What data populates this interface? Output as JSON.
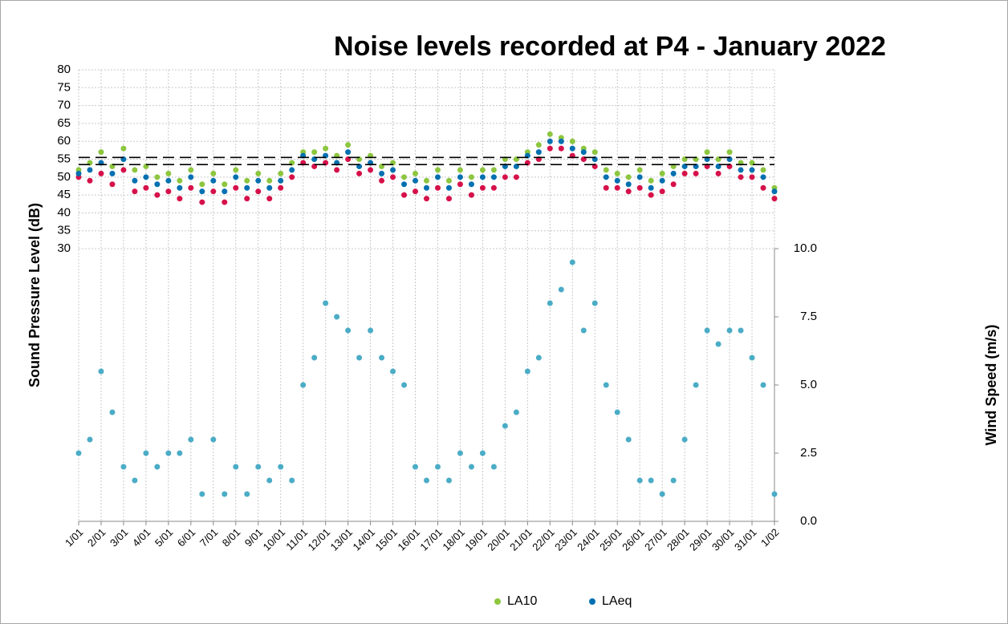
{
  "chart_data": {
    "type": "scatter",
    "title": "Noise levels recorded at P4 - January 2022",
    "ylabel": "Sound Pressure Level (dB)",
    "y2label": "Wind Speed (m/s)",
    "x": [
      0,
      0.5,
      1,
      1.5,
      2,
      2.5,
      3,
      3.5,
      4,
      4.5,
      5,
      5.5,
      6,
      6.5,
      7,
      7.5,
      8,
      8.5,
      9,
      9.5,
      10,
      10.5,
      11,
      11.5,
      12,
      12.5,
      13,
      13.5,
      14,
      14.5,
      15,
      15.5,
      16,
      16.5,
      17,
      17.5,
      18,
      18.5,
      19,
      19.5,
      20,
      20.5,
      21,
      21.5,
      22,
      22.5,
      23,
      23.5,
      24,
      24.5,
      25,
      25.5,
      26,
      26.5,
      27,
      27.5,
      28,
      28.5,
      29,
      29.5,
      30,
      30.5,
      31
    ],
    "xlim": [
      0,
      31
    ],
    "xticks": [
      {
        "value": 0,
        "label": "1/01"
      },
      {
        "value": 1,
        "label": "2/01"
      },
      {
        "value": 2,
        "label": "3/01"
      },
      {
        "value": 3,
        "label": "4/01"
      },
      {
        "value": 4,
        "label": "5/01"
      },
      {
        "value": 5,
        "label": "6/01"
      },
      {
        "value": 6,
        "label": "7/01"
      },
      {
        "value": 7,
        "label": "8/01"
      },
      {
        "value": 8,
        "label": "9/01"
      },
      {
        "value": 9,
        "label": "10/01"
      },
      {
        "value": 10,
        "label": "11/01"
      },
      {
        "value": 11,
        "label": "12/01"
      },
      {
        "value": 12,
        "label": "13/01"
      },
      {
        "value": 13,
        "label": "14/01"
      },
      {
        "value": 14,
        "label": "15/01"
      },
      {
        "value": 15,
        "label": "16/01"
      },
      {
        "value": 16,
        "label": "17/01"
      },
      {
        "value": 17,
        "label": "18/01"
      },
      {
        "value": 18,
        "label": "19/01"
      },
      {
        "value": 19,
        "label": "20/01"
      },
      {
        "value": 20,
        "label": "21/01"
      },
      {
        "value": 21,
        "label": "22/01"
      },
      {
        "value": 22,
        "label": "23/01"
      },
      {
        "value": 23,
        "label": "24/01"
      },
      {
        "value": 24,
        "label": "25/01"
      },
      {
        "value": 25,
        "label": "26/01"
      },
      {
        "value": 26,
        "label": "27/01"
      },
      {
        "value": 27,
        "label": "28/01"
      },
      {
        "value": 28,
        "label": "29/01"
      },
      {
        "value": 29,
        "label": "30/01"
      },
      {
        "value": 30,
        "label": "31/01"
      },
      {
        "value": 31,
        "label": "1/02"
      }
    ],
    "ylim": [
      -46.2,
      80
    ],
    "yticks": [
      30,
      35,
      40,
      45,
      50,
      55,
      60,
      65,
      70,
      75,
      80
    ],
    "y2lim": [
      0,
      16.56
    ],
    "y2ticks": [
      {
        "value": 0,
        "label": "0.0"
      },
      {
        "value": 2.5,
        "label": "2.5"
      },
      {
        "value": 5,
        "label": "5.0"
      },
      {
        "value": 7.5,
        "label": "7.5"
      },
      {
        "value": 10,
        "label": "10.0"
      }
    ],
    "grid": true,
    "legend": "bottom",
    "reference_lines": [
      55.5,
      53.5
    ],
    "series": [
      {
        "color": "#d6114a",
        "values": [
          50,
          49,
          51,
          48,
          52,
          46,
          47,
          45,
          46,
          44,
          47,
          43,
          46,
          43,
          47,
          44,
          46,
          44,
          47,
          50,
          54,
          53,
          54,
          52,
          55,
          51,
          52,
          49,
          50,
          45,
          46,
          44,
          47,
          44,
          48,
          45,
          47,
          47,
          50,
          50,
          54,
          55,
          58,
          58,
          56,
          55,
          53,
          47,
          47,
          46,
          47,
          45,
          46,
          48,
          51,
          51,
          53,
          51,
          53,
          50,
          50,
          47,
          44
        ]
      },
      {
        "name": "LA10",
        "color": "#8dc63f",
        "values": [
          52,
          54,
          57,
          53,
          58,
          52,
          53,
          50,
          51,
          49,
          52,
          48,
          51,
          48,
          52,
          49,
          51,
          49,
          51,
          54,
          57,
          57,
          58,
          56,
          59,
          55,
          56,
          53,
          54,
          50,
          51,
          49,
          52,
          49,
          52,
          50,
          52,
          52,
          55,
          55,
          57,
          59,
          62,
          61,
          60,
          58,
          57,
          52,
          51,
          50,
          52,
          49,
          51,
          53,
          55,
          55,
          57,
          55,
          57,
          54,
          54,
          52,
          47
        ]
      },
      {
        "name": "LAeq",
        "color": "#0070b0",
        "values": [
          51,
          52,
          54,
          51,
          55,
          49,
          50,
          48,
          49,
          47,
          50,
          46,
          49,
          46,
          50,
          47,
          49,
          47,
          49,
          52,
          56,
          55,
          56,
          54,
          57,
          53,
          54,
          51,
          52,
          48,
          49,
          47,
          50,
          47,
          50,
          48,
          50,
          50,
          53,
          53,
          56,
          57,
          60,
          60,
          58,
          57,
          55,
          50,
          49,
          48,
          50,
          47,
          49,
          51,
          53,
          53,
          55,
          53,
          55,
          52,
          52,
          50,
          46
        ]
      },
      {
        "color": "#4bacc6",
        "axis": "y2",
        "values": [
          2.5,
          3,
          5.5,
          4,
          2,
          1.5,
          2.5,
          2,
          2.5,
          2.5,
          3,
          1,
          3,
          1,
          2,
          1,
          2,
          1.5,
          2,
          1.5,
          5,
          6,
          8,
          7.5,
          7,
          6,
          7,
          6,
          5.5,
          5,
          2,
          1.5,
          2,
          1.5,
          2.5,
          2,
          2.5,
          2,
          3.5,
          4,
          5.5,
          6,
          8,
          8.5,
          9.5,
          7,
          8,
          5,
          4,
          3,
          1.5,
          1.5,
          1,
          1.5,
          3,
          5,
          7,
          6.5,
          7,
          7,
          6,
          5,
          1
        ]
      }
    ]
  }
}
